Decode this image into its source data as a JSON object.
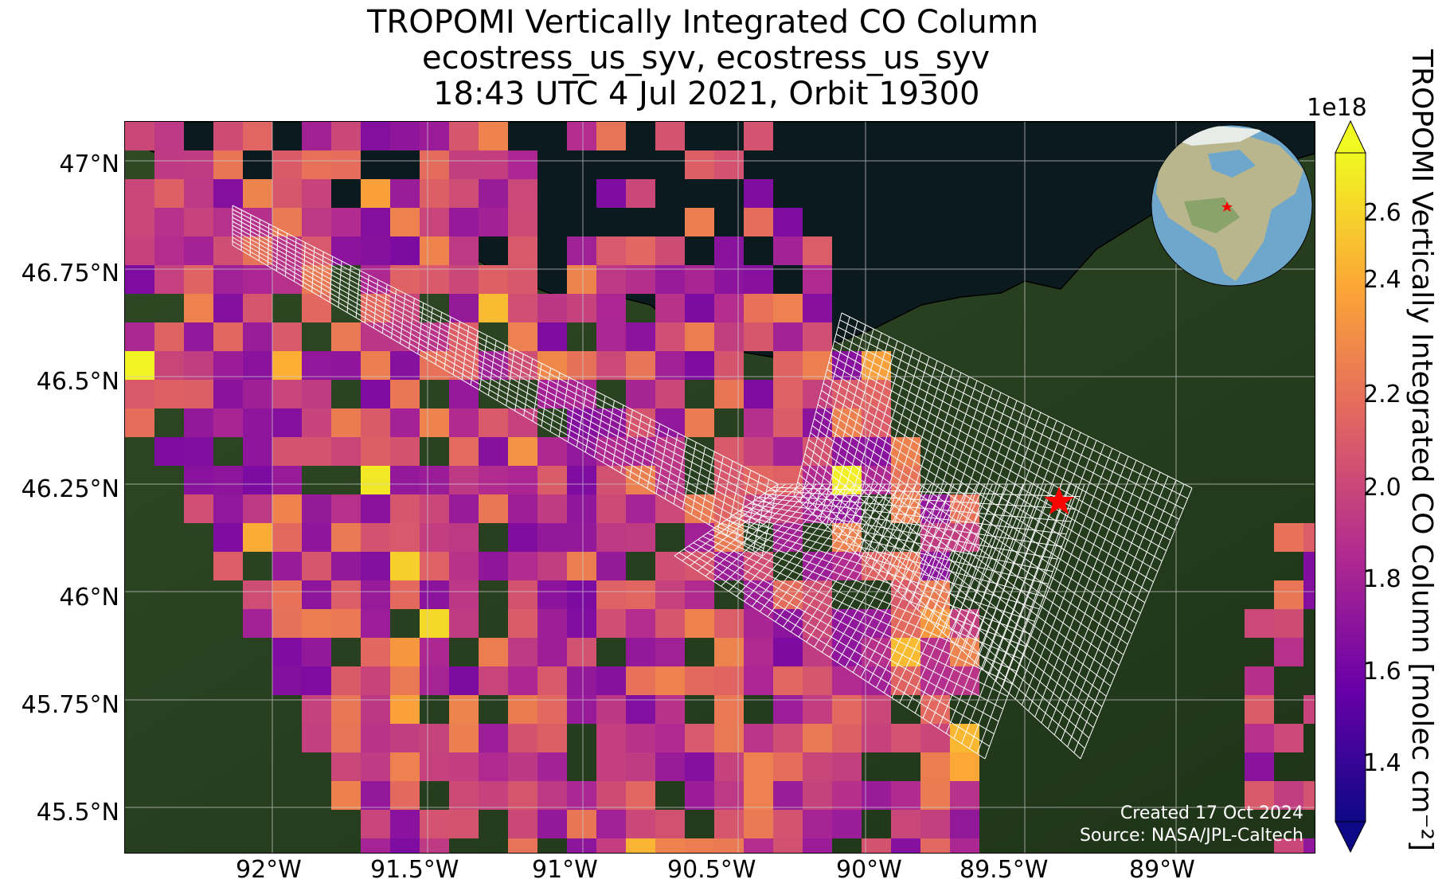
{
  "title": {
    "line1": "TROPOMI Vertically Integrated CO Column",
    "line2": "ecostress_us_syv, ecostress_us_syv",
    "line3": "18:43 UTC 4 Jul 2021, Orbit 19300"
  },
  "map": {
    "lat_ticks": [
      "47°N",
      "46.75°N",
      "46.5°N",
      "46.25°N",
      "46°N",
      "45.75°N",
      "45.5°N"
    ],
    "lon_ticks": [
      "92°W",
      "91.5°W",
      "91°W",
      "90.5°W",
      "90°W",
      "89.5°W",
      "89°W"
    ],
    "site_marker": "red-star",
    "inset": "globe-north-america-red-star",
    "credit_line1": "Created 17 Oct 2024",
    "credit_line2": "Source: NASA/JPL-Caltech"
  },
  "colorbar": {
    "exponent": "1e18",
    "ticks": [
      "2.6",
      "2.4",
      "2.2",
      "2.0",
      "1.8",
      "1.6",
      "1.4"
    ],
    "label": "TROPOMI Vertically Integrated CO Column [molec cm⁻²]",
    "colormap": "plasma",
    "colors": [
      "#0d0887",
      "#6a00a8",
      "#b12a90",
      "#e16462",
      "#fca636",
      "#f0f921"
    ]
  }
}
